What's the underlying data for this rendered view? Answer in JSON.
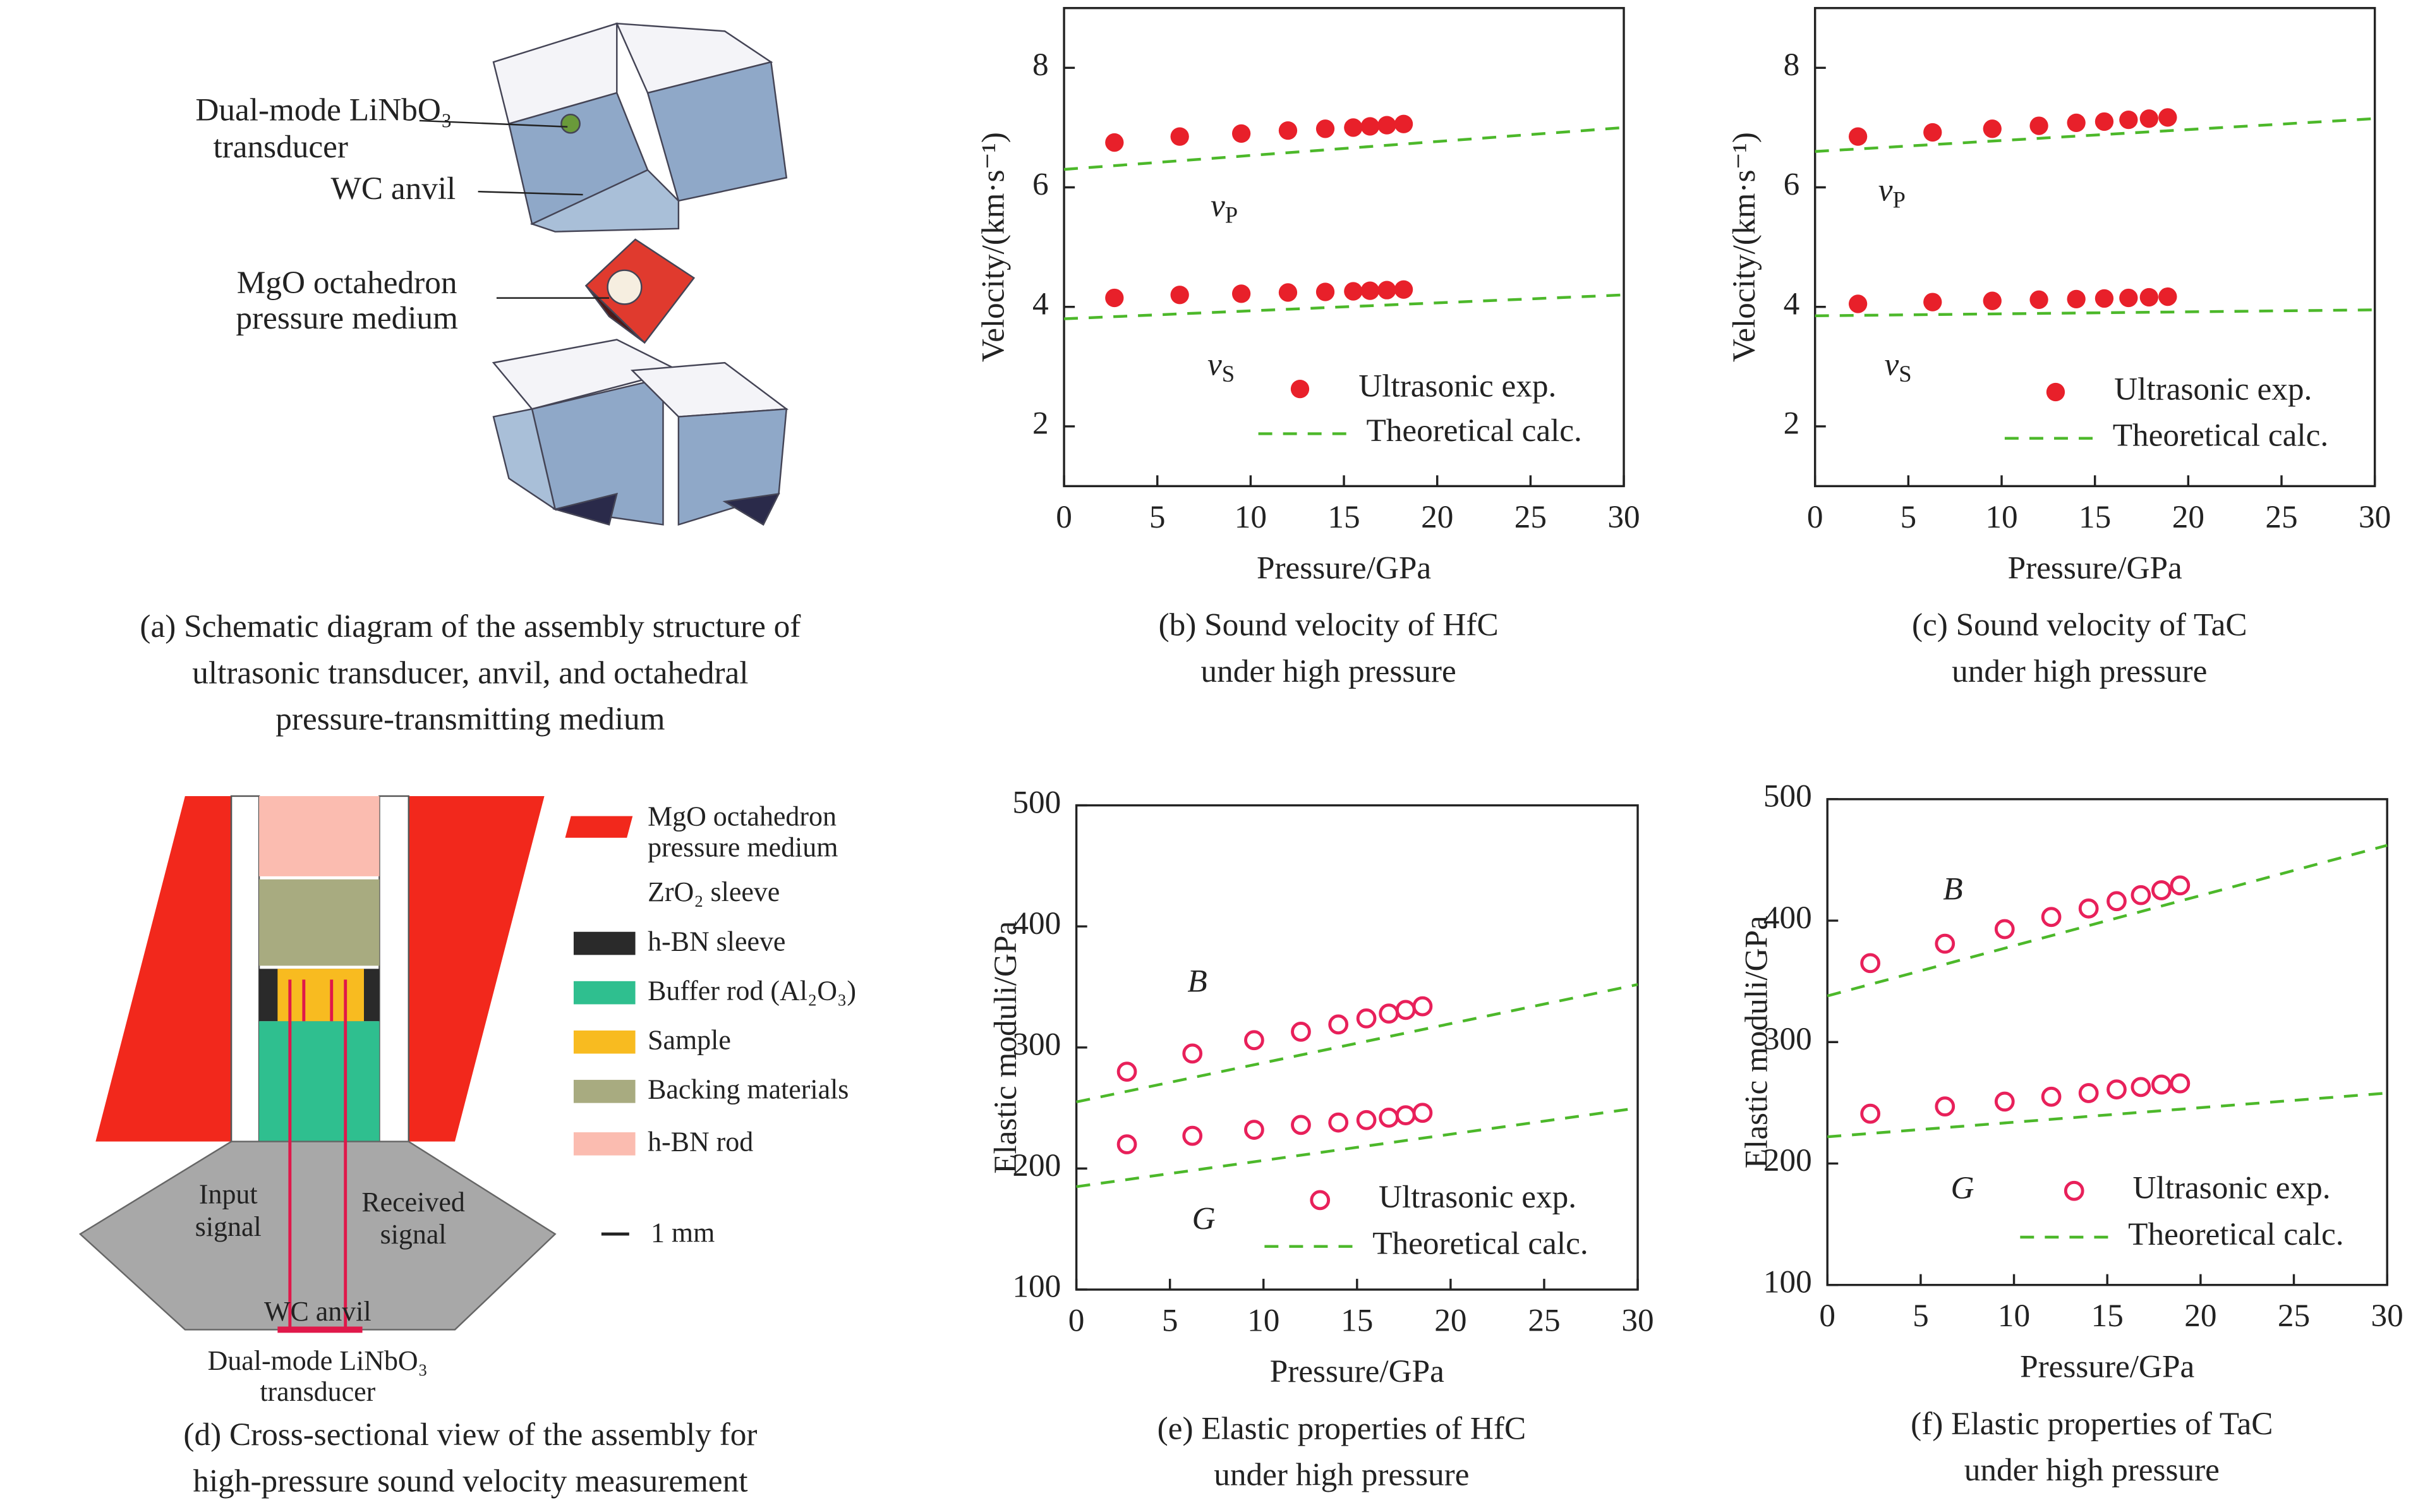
{
  "panel_a": {
    "labels": [
      "Dual-mode LiNbO₃",
      "transducer",
      "WC anvil",
      "MgO octahedron",
      "pressure medium"
    ],
    "caption": [
      "(a) Schematic diagram of the assembly structure of",
      "ultrasonic transducer, anvil, and octahedral",
      "pressure-transmitting medium"
    ]
  },
  "panel_d": {
    "legend": [
      [
        "MgO octahedron",
        "pressure medium"
      ],
      [
        "ZrO₂ sleeve"
      ],
      [
        "h-BN sleeve"
      ],
      [
        "Buffer rod (Al₂O₃)"
      ],
      [
        "Sample"
      ],
      [
        "Backing materials"
      ],
      [
        "h-BN rod"
      ]
    ],
    "labels": [
      "Input",
      "signal",
      "Received",
      "signal",
      "WC anvil",
      "Dual-mode LiNbO₃",
      "transducer"
    ],
    "scale": "1 mm",
    "caption": [
      "(d) Cross-sectional view of the assembly for",
      "high-pressure sound velocity measurement"
    ]
  },
  "chart_data": [
    {
      "type": "scatter",
      "caption": [
        "(b) Sound velocity of HfC",
        "under high pressure"
      ],
      "xlabel": "Pressure/GPa",
      "ylabel": "Velocity/(km·s⁻¹)",
      "xlim": [
        0,
        30
      ],
      "xticks": [
        0,
        5,
        10,
        15,
        20,
        25,
        30
      ],
      "ylim": [
        1,
        9
      ],
      "yticks": [
        2,
        4,
        6,
        8
      ],
      "annotations": [
        {
          "text": "v",
          "sub": "P"
        },
        {
          "text": "v",
          "sub": "S"
        }
      ],
      "series": [
        {
          "name": "Ultrasonic exp.",
          "color": "#e8202a",
          "marker": "filled",
          "x": [
            2.7,
            6.2,
            9.5,
            12,
            14,
            15.5,
            16.4,
            17.3,
            18.2
          ],
          "values": [
            6.75,
            6.85,
            6.9,
            6.95,
            6.98,
            7.0,
            7.02,
            7.04,
            7.06
          ]
        },
        {
          "color": "#e8202a",
          "marker": "filled",
          "x": [
            2.7,
            6.2,
            9.5,
            12,
            14,
            15.5,
            16.4,
            17.3,
            18.2
          ],
          "values": [
            4.15,
            4.2,
            4.22,
            4.24,
            4.25,
            4.26,
            4.27,
            4.28,
            4.29
          ]
        },
        {
          "name": "Theoretical calc.",
          "color": "#4cb82a",
          "style": "dashed",
          "x": [
            0,
            30
          ],
          "values": [
            6.3,
            7.0
          ]
        },
        {
          "color": "#4cb82a",
          "style": "dashed",
          "x": [
            0,
            30
          ],
          "values": [
            3.8,
            4.2
          ]
        }
      ]
    },
    {
      "type": "scatter",
      "caption": [
        "(c) Sound velocity of TaC",
        "under high pressure"
      ],
      "xlabel": "Pressure/GPa",
      "ylabel": "Velocity/(km·s⁻¹)",
      "xlim": [
        0,
        30
      ],
      "xticks": [
        0,
        5,
        10,
        15,
        20,
        25,
        30
      ],
      "ylim": [
        1,
        9
      ],
      "yticks": [
        2,
        4,
        6,
        8
      ],
      "annotations": [
        {
          "text": "v",
          "sub": "P"
        },
        {
          "text": "v",
          "sub": "S"
        }
      ],
      "series": [
        {
          "name": "Ultrasonic exp.",
          "color": "#e8202a",
          "marker": "filled",
          "x": [
            2.3,
            6.3,
            9.5,
            12,
            14,
            15.5,
            16.8,
            17.9,
            18.9
          ],
          "values": [
            6.85,
            6.92,
            6.98,
            7.03,
            7.08,
            7.1,
            7.13,
            7.15,
            7.17
          ]
        },
        {
          "color": "#e8202a",
          "marker": "filled",
          "x": [
            2.3,
            6.3,
            9.5,
            12,
            14,
            15.5,
            16.8,
            17.9,
            18.9
          ],
          "values": [
            4.05,
            4.08,
            4.1,
            4.12,
            4.13,
            4.14,
            4.15,
            4.16,
            4.17
          ]
        },
        {
          "name": "Theoretical calc.",
          "color": "#4cb82a",
          "style": "dashed",
          "x": [
            0,
            30
          ],
          "values": [
            6.6,
            7.15
          ]
        },
        {
          "color": "#4cb82a",
          "style": "dashed",
          "x": [
            0,
            30
          ],
          "values": [
            3.85,
            3.95
          ]
        }
      ]
    },
    {
      "type": "scatter",
      "caption": [
        "(e) Elastic properties of HfC",
        "under high pressure"
      ],
      "xlabel": "Pressure/GPa",
      "ylabel": "Elastic moduli/GPa",
      "xlim": [
        0,
        30
      ],
      "xticks": [
        0,
        5,
        10,
        15,
        20,
        25,
        30
      ],
      "ylim": [
        100,
        500
      ],
      "yticks": [
        100,
        200,
        300,
        400,
        500
      ],
      "annotations": [
        {
          "text": "B"
        },
        {
          "text": "G"
        }
      ],
      "series": [
        {
          "name": "Ultrasonic exp.",
          "color": "#e8205a",
          "marker": "open",
          "x": [
            2.7,
            6.2,
            9.5,
            12,
            14,
            15.5,
            16.7,
            17.6,
            18.5
          ],
          "values": [
            280,
            295,
            306,
            313,
            319,
            324,
            328,
            331,
            334
          ]
        },
        {
          "color": "#e8205a",
          "marker": "open",
          "x": [
            2.7,
            6.2,
            9.5,
            12,
            14,
            15.5,
            16.7,
            17.6,
            18.5
          ],
          "values": [
            220,
            227,
            232,
            236,
            238,
            240,
            242,
            244,
            246
          ]
        },
        {
          "name": "Theoretical calc.",
          "color": "#4cb82a",
          "style": "dashed",
          "x": [
            0,
            30
          ],
          "values": [
            255,
            352
          ]
        },
        {
          "color": "#4cb82a",
          "style": "dashed",
          "x": [
            0,
            30
          ],
          "values": [
            185,
            250
          ]
        }
      ]
    },
    {
      "type": "scatter",
      "caption": [
        "(f) Elastic properties of TaC",
        "under high pressure"
      ],
      "xlabel": "Pressure/GPa",
      "ylabel": "Elastic moduli/GPa",
      "xlim": [
        0,
        30
      ],
      "xticks": [
        0,
        5,
        10,
        15,
        20,
        25,
        30
      ],
      "ylim": [
        100,
        500
      ],
      "yticks": [
        100,
        200,
        300,
        400,
        500
      ],
      "annotations": [
        {
          "text": "B"
        },
        {
          "text": "G"
        }
      ],
      "series": [
        {
          "name": "Ultrasonic exp.",
          "color": "#e8205a",
          "marker": "open",
          "x": [
            2.3,
            6.3,
            9.5,
            12,
            14,
            15.5,
            16.8,
            17.9,
            18.9
          ],
          "values": [
            365,
            381,
            393,
            403,
            410,
            416,
            421,
            425,
            429
          ]
        },
        {
          "color": "#e8205a",
          "marker": "open",
          "x": [
            2.3,
            6.3,
            9.5,
            12,
            14,
            15.5,
            16.8,
            17.9,
            18.9
          ],
          "values": [
            241,
            247,
            251,
            255,
            258,
            261,
            263,
            265,
            266
          ]
        },
        {
          "name": "Theoretical calc.",
          "color": "#4cb82a",
          "style": "dashed",
          "x": [
            0,
            30
          ],
          "values": [
            338,
            462
          ]
        },
        {
          "color": "#4cb82a",
          "style": "dashed",
          "x": [
            0,
            30
          ],
          "values": [
            222,
            258
          ]
        }
      ]
    }
  ]
}
